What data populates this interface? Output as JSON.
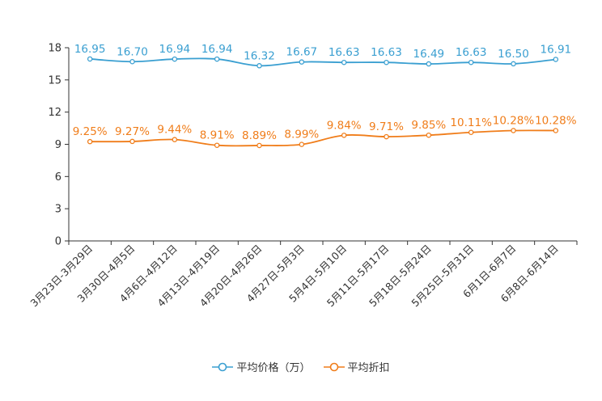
{
  "chart_data": {
    "type": "line",
    "categories": [
      "3月23日-3月29日",
      "3月30日-4月5日",
      "4月6日-4月12日",
      "4月13日-4月19日",
      "4月20日-4月26日",
      "4月27日-5月3日",
      "5月4日-5月10日",
      "5月11日-5月17日",
      "5月18日-5月24日",
      "5月25日-5月31日",
      "6月1日-6月7日",
      "6月8日-6月14日"
    ],
    "ylim": [
      0,
      18
    ],
    "yticks": [
      0,
      3,
      6,
      9,
      12,
      15,
      18
    ],
    "series": [
      {
        "name": "平均价格（万）",
        "color": "#3a9fd1",
        "values": [
          16.95,
          16.7,
          16.94,
          16.94,
          16.32,
          16.67,
          16.63,
          16.63,
          16.49,
          16.63,
          16.5,
          16.91
        ],
        "labels": [
          "16.95",
          "16.70",
          "16.94",
          "16.94",
          "16.32",
          "16.67",
          "16.63",
          "16.63",
          "16.49",
          "16.63",
          "16.50",
          "16.91"
        ]
      },
      {
        "name": "平均折扣",
        "color": "#f07d1a",
        "values": [
          9.25,
          9.27,
          9.44,
          8.91,
          8.89,
          8.99,
          9.84,
          9.71,
          9.85,
          10.11,
          10.28,
          10.28
        ],
        "labels": [
          "9.25%",
          "9.27%",
          "9.44%",
          "8.91%",
          "8.89%",
          "8.99%",
          "9.84%",
          "9.71%",
          "9.85%",
          "10.11%",
          "10.28%",
          "10.28%"
        ]
      }
    ],
    "legend_position": "bottom-center"
  }
}
